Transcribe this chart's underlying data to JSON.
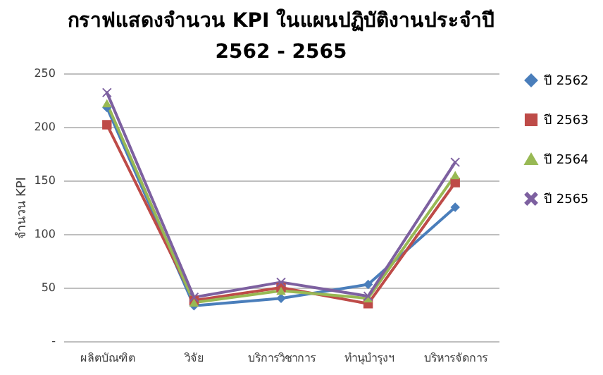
{
  "chart_data": {
    "type": "line",
    "title": "กราฟแสดงจำนวน KPI ในแผนปฏิบัติงานประจำปี 2562 - 2565",
    "ylabel": "จำนวน KPI",
    "categories": [
      "ผลิตบัณฑิต",
      "วิจัย",
      "บริการวิชาการ",
      "ทำนุบำรุงฯ",
      "บริหารจัดการ"
    ],
    "series": [
      {
        "name": "ปี 2562",
        "color": "#4a7ebb",
        "marker": "diamond",
        "values": [
          218,
          33,
          40,
          53,
          125
        ]
      },
      {
        "name": "ปี 2563",
        "color": "#be4b48",
        "marker": "square",
        "values": [
          202,
          38,
          50,
          35,
          148
        ]
      },
      {
        "name": "ปี 2564",
        "color": "#98b954",
        "marker": "triangle",
        "values": [
          222,
          36,
          47,
          40,
          155
        ]
      },
      {
        "name": "ปี 2565",
        "color": "#7d60a0",
        "marker": "cross",
        "values": [
          232,
          41,
          55,
          42,
          167
        ]
      }
    ],
    "ylim": [
      0,
      250
    ],
    "yticks": [
      {
        "value": 0,
        "label": "-"
      },
      50,
      100,
      150,
      200,
      250
    ],
    "grid": "y",
    "legend": "right"
  }
}
